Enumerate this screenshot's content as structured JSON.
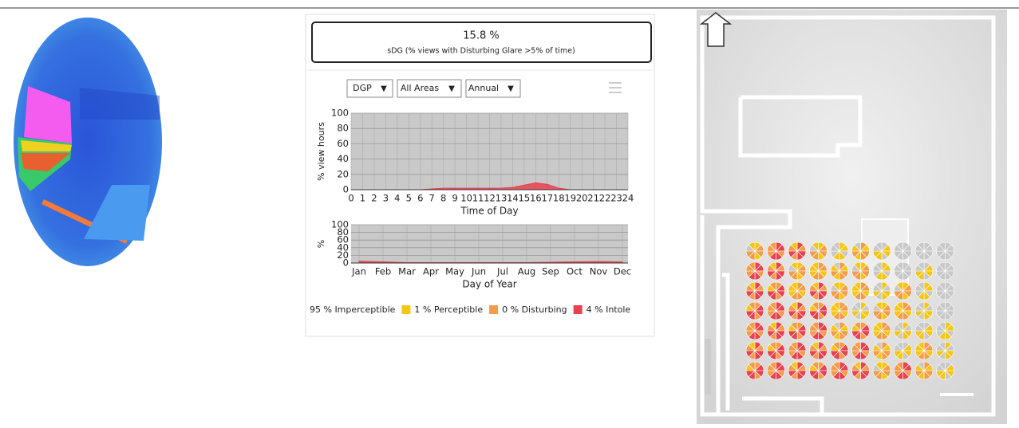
{
  "summary": {
    "value": "15.8 %",
    "label": "sDG (% views with Disturbing Glare >5% of time)"
  },
  "controls": [
    "DGP",
    "All Areas",
    "Annual"
  ],
  "chart_data": [
    {
      "type": "area",
      "ylabel": "% view hours",
      "xlabel": "Time of Day",
      "x": [
        0,
        1,
        2,
        3,
        4,
        5,
        6,
        7,
        8,
        9,
        10,
        11,
        12,
        13,
        14,
        15,
        16,
        17,
        18,
        19,
        20,
        21,
        22,
        23,
        24
      ],
      "series": [
        {
          "color": "#e8414f",
          "values": [
            0,
            0,
            0,
            0,
            0,
            0,
            0,
            1,
            2,
            2,
            2,
            2,
            2,
            2,
            3,
            6,
            9,
            7,
            2,
            0,
            0,
            0,
            0,
            0,
            0
          ]
        }
      ],
      "xlim": [
        0,
        24
      ],
      "xticks": [
        0,
        1,
        2,
        3,
        4,
        5,
        6,
        7,
        8,
        9,
        10,
        11,
        12,
        13,
        14,
        15,
        16,
        17,
        18,
        19,
        20,
        21,
        22,
        23,
        24
      ],
      "ylim": [
        0,
        100
      ],
      "yticks": [
        0,
        20,
        40,
        60,
        80,
        100
      ],
      "grid": true
    },
    {
      "type": "area",
      "ylabel": "%",
      "xlabel": "Day of Year",
      "categories": [
        "Jan",
        "Feb",
        "Mar",
        "Apr",
        "May",
        "Jun",
        "Jul",
        "Aug",
        "Sep",
        "Oct",
        "Nov",
        "Dec"
      ],
      "series": [
        {
          "color": "#e8414f",
          "values": [
            5,
            3,
            1,
            1,
            1,
            1,
            1,
            1,
            2,
            3,
            4,
            3
          ]
        }
      ],
      "ylim": [
        0,
        100
      ],
      "yticks": [
        0,
        20,
        40,
        60,
        80,
        100
      ],
      "grid": true
    }
  ],
  "legend": [
    {
      "text": "95 % Imperceptible"
    },
    {
      "text": "1 % Perceptible",
      "color": "#f5c518"
    },
    {
      "text": "0 % Disturbing",
      "color": "#f39c4a"
    },
    {
      "text": "4 % Intole",
      "color": "#e8414f"
    }
  ]
}
